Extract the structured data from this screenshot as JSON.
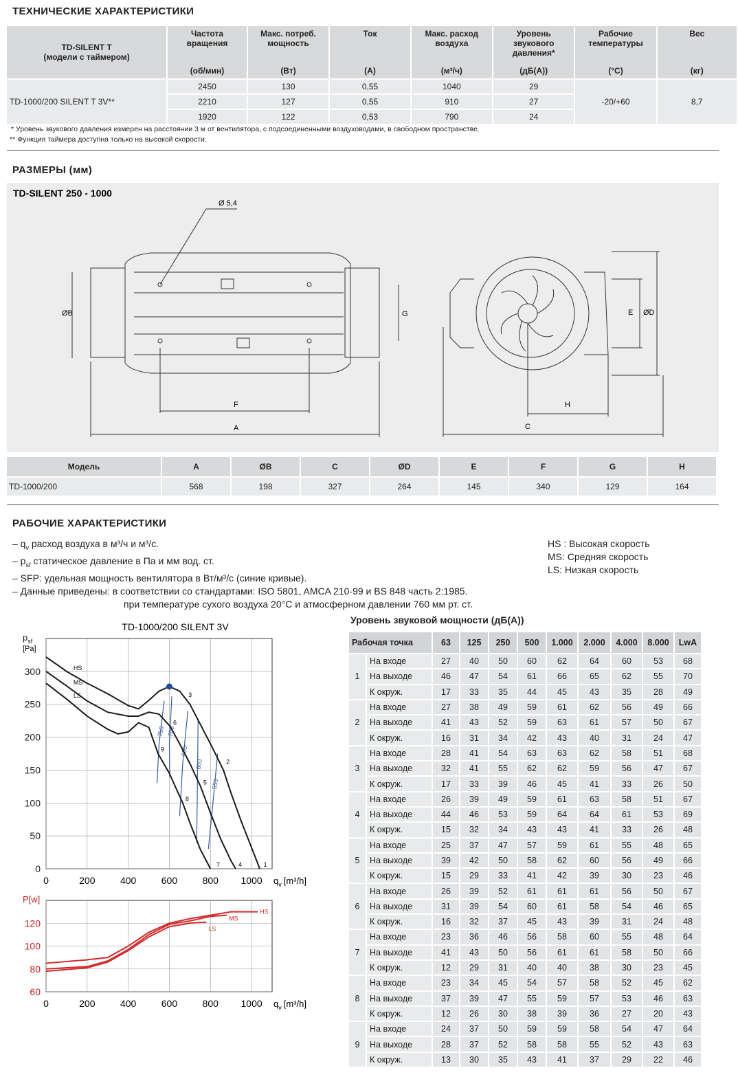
{
  "specs": {
    "title": "ТЕХНИЧЕСКИЕ ХАРАКТЕРИСТИКИ",
    "model_header": [
      "TD-SILENT T",
      "(модели с таймером)"
    ],
    "columns": [
      {
        "name": "Частота вращения",
        "unit": "(об/мин)"
      },
      {
        "name": "Макс. потреб. мощность",
        "unit": "(Вт)"
      },
      {
        "name": "Ток",
        "unit": "(A)"
      },
      {
        "name": "Макс. расход воздуха",
        "unit": "(м³/ч)"
      },
      {
        "name": "Уровень звукового давления*",
        "unit": "(дБ(A))"
      },
      {
        "name": "Рабочие температуры",
        "unit": "(°C)"
      },
      {
        "name": "Вес",
        "unit": "(кг)"
      }
    ],
    "model": "TD-1000/200 SILENT T 3V**",
    "rows": [
      [
        "2450",
        "130",
        "0,55",
        "1040",
        "29"
      ],
      [
        "2210",
        "127",
        "0,55",
        "910",
        "27"
      ],
      [
        "1920",
        "122",
        "0,53",
        "790",
        "24"
      ]
    ],
    "temperature": "-20/+60",
    "weight": "8,7",
    "notes": [
      "* Уровень звукового давления измерен на расстоянии 3 м от вентилятора, с подсоединенными воздуховодами, в свободном пространстве.",
      "** Функция таймера доступна только на высокой скорости."
    ]
  },
  "dimensions": {
    "title": "РАЗМЕРЫ (мм)",
    "drawing_title": "TD-SILENT 250 - 1000",
    "drawing_labels": {
      "hole": "Ø 5,4",
      "B": "ØB",
      "G": "G",
      "F": "F",
      "A": "A",
      "E": "E",
      "D": "ØD",
      "H": "H",
      "C": "C"
    },
    "table": {
      "header": [
        "Модель",
        "A",
        "ØB",
        "C",
        "ØD",
        "E",
        "F",
        "G",
        "H"
      ],
      "row": [
        "TD-1000/200",
        "568",
        "198",
        "327",
        "264",
        "145",
        "340",
        "129",
        "164"
      ]
    }
  },
  "performance": {
    "title": "РАБОЧИЕ ХАРАКТЕРИСТИКИ",
    "notes": [
      {
        "pre": "– q",
        "sub": "v",
        "post": " расход воздуха в м³/ч и м³/с."
      },
      {
        "pre": "– p",
        "sub": "sf",
        "post": "  статическое давление в Па и мм вод. ст."
      },
      {
        "pre": "– SFP: удельная мощность вентилятора в Вт/м³/с (синие кривые)."
      },
      {
        "pre": "– Данные приведены: в соответствии со стандартами: ISO 5801, AMCA 210-99 и BS 848 часть 2:1985."
      },
      {
        "pre": "при температуре сухого воздуха 20°C и атмосферном давлении 760 мм рт. ст."
      }
    ],
    "legend": [
      "HS : Высокая скорость",
      "MS: Средняя скорость",
      "LS: Низкая скорость"
    ]
  },
  "chart_data": [
    {
      "type": "line",
      "title": "TD-1000/200 SILENT 3V",
      "y_label": "p",
      "y_label_sub": "sf",
      "y_unit": "[Pa]",
      "x_label": "q",
      "x_label_sub": "v",
      "x_unit": "[m³/h]",
      "xlim": [
        0,
        1100
      ],
      "ylim": [
        0,
        350
      ],
      "xticks": [
        0,
        200,
        400,
        600,
        800,
        1000
      ],
      "yticks": [
        0,
        50,
        100,
        150,
        200,
        250,
        300
      ],
      "grid": true,
      "series_label_position": "start",
      "series": [
        {
          "name": "HS",
          "color": "#1a1a1a",
          "x": [
            0,
            100,
            200,
            300,
            400,
            450,
            500,
            550,
            600,
            650,
            700,
            750,
            800,
            863,
            900,
            950,
            1000,
            1040
          ],
          "values": [
            322,
            300,
            282,
            266,
            248,
            243,
            256,
            270,
            277,
            270,
            250,
            220,
            190,
            150,
            115,
            72,
            32,
            0
          ]
        },
        {
          "name": "MS",
          "color": "#1a1a1a",
          "x": [
            0,
            100,
            200,
            300,
            400,
            450,
            500,
            550,
            605,
            650,
            700,
            752,
            800,
            850,
            900,
            923
          ],
          "values": [
            300,
            278,
            255,
            238,
            232,
            232,
            238,
            235,
            216,
            190,
            160,
            125,
            85,
            45,
            12,
            0
          ]
        },
        {
          "name": "LS",
          "color": "#1a1a1a",
          "x": [
            0,
            100,
            200,
            300,
            350,
            400,
            450,
            500,
            545,
            600,
            665,
            700,
            750,
            800
          ],
          "values": [
            282,
            258,
            232,
            212,
            205,
            208,
            222,
            215,
            175,
            145,
            100,
            70,
            30,
            0
          ]
        }
      ],
      "sfp_series": [
        {
          "name": "750",
          "color": "#3a5a9a",
          "x": [
            575,
            550,
            540
          ],
          "values": [
            255,
            190,
            130
          ]
        },
        {
          "name": "700",
          "color": "#3a5a9a",
          "x": [
            612,
            600,
            602
          ],
          "values": [
            262,
            190,
            140
          ]
        },
        {
          "name": "650",
          "color": "#3a5a9a",
          "x": [
            690,
            665,
            650
          ],
          "values": [
            240,
            160,
            80
          ]
        },
        {
          "name": "600",
          "color": "#3a5a9a",
          "x": [
            740,
            737,
            733
          ],
          "values": [
            228,
            140,
            40
          ]
        },
        {
          "name": "550",
          "color": "#3a5a9a",
          "x": [
            835,
            815,
            790
          ],
          "values": [
            175,
            110,
            30
          ]
        }
      ],
      "point": {
        "x": 600,
        "y": 277,
        "color": "#1f4e9e"
      },
      "annotations": [
        {
          "text": "1",
          "x": 1045,
          "y": 0
        },
        {
          "text": "2",
          "x": 863,
          "y": 156
        },
        {
          "text": "3",
          "x": 679,
          "y": 258
        },
        {
          "text": "4",
          "x": 923,
          "y": 0
        },
        {
          "text": "5",
          "x": 752,
          "y": 125
        },
        {
          "text": "6",
          "x": 605,
          "y": 216
        },
        {
          "text": "7",
          "x": 816,
          "y": 0
        },
        {
          "text": "8",
          "x": 665,
          "y": 100
        },
        {
          "text": "9",
          "x": 545,
          "y": 175
        }
      ]
    },
    {
      "type": "line",
      "y_label": "P[w]",
      "y_label_color": "#cc1f1f",
      "x_label": "q",
      "x_label_sub": "v",
      "x_unit": "[m³/h]",
      "xlim": [
        0,
        1100
      ],
      "ylim": [
        60,
        140
      ],
      "xticks": [
        0,
        200,
        400,
        600,
        800,
        1000
      ],
      "yticks": [
        60,
        80,
        100,
        120
      ],
      "grid": true,
      "series_label_position": "end",
      "series": [
        {
          "name": "HS",
          "color": "#d42a2a",
          "x": [
            0,
            200,
            300,
            400,
            500,
            600,
            700,
            800,
            900,
            1030
          ],
          "values": [
            85,
            88,
            90,
            100,
            112,
            120,
            124,
            127,
            130,
            130
          ]
        },
        {
          "name": "MS",
          "color": "#d42a2a",
          "x": [
            0,
            200,
            300,
            400,
            500,
            600,
            700,
            800,
            880
          ],
          "values": [
            80,
            82,
            87,
            97,
            110,
            119,
            122,
            126,
            127
          ]
        },
        {
          "name": "LS",
          "color": "#d42a2a",
          "x": [
            0,
            200,
            300,
            400,
            500,
            600,
            700,
            780
          ],
          "values": [
            78,
            81,
            86,
            96,
            108,
            117,
            120,
            121
          ]
        }
      ]
    }
  ],
  "sound_table": {
    "title": "Уровень звуковой мощности (дБ(A))",
    "header": [
      "Рабочая точка",
      "63",
      "125",
      "250",
      "500",
      "1.000",
      "2.000",
      "4.000",
      "8.000",
      "LwA"
    ],
    "groups": [
      {
        "point": "1",
        "rows": [
          {
            "label": "На входе",
            "values": [
              "27",
              "40",
              "50",
              "60",
              "62",
              "64",
              "60",
              "53",
              "68"
            ]
          },
          {
            "label": "На выходе",
            "values": [
              "46",
              "47",
              "54",
              "61",
              "66",
              "65",
              "62",
              "55",
              "70"
            ]
          },
          {
            "label": "К окруж.",
            "values": [
              "17",
              "33",
              "35",
              "44",
              "45",
              "43",
              "35",
              "28",
              "49"
            ]
          }
        ]
      },
      {
        "point": "2",
        "rows": [
          {
            "label": "На входе",
            "values": [
              "27",
              "38",
              "49",
              "59",
              "61",
              "62",
              "56",
              "49",
              "66"
            ]
          },
          {
            "label": "На выходе",
            "values": [
              "41",
              "43",
              "52",
              "59",
              "63",
              "61",
              "57",
              "50",
              "67"
            ]
          },
          {
            "label": "К окруж.",
            "values": [
              "16",
              "31",
              "34",
              "42",
              "43",
              "40",
              "31",
              "24",
              "47"
            ]
          }
        ]
      },
      {
        "point": "3",
        "rows": [
          {
            "label": "На входе",
            "values": [
              "28",
              "41",
              "54",
              "63",
              "63",
              "62",
              "58",
              "51",
              "68"
            ]
          },
          {
            "label": "На выходе",
            "values": [
              "32",
              "41",
              "55",
              "62",
              "62",
              "59",
              "56",
              "47",
              "67"
            ]
          },
          {
            "label": "К окруж.",
            "values": [
              "17",
              "33",
              "39",
              "46",
              "45",
              "41",
              "33",
              "26",
              "50"
            ]
          }
        ]
      },
      {
        "point": "4",
        "rows": [
          {
            "label": "На входе",
            "values": [
              "26",
              "39",
              "49",
              "59",
              "61",
              "63",
              "58",
              "51",
              "67"
            ]
          },
          {
            "label": "На выходе",
            "values": [
              "44",
              "46",
              "53",
              "59",
              "64",
              "64",
              "61",
              "53",
              "69"
            ]
          },
          {
            "label": "К окруж.",
            "values": [
              "15",
              "32",
              "34",
              "43",
              "43",
              "41",
              "33",
              "26",
              "48"
            ]
          }
        ]
      },
      {
        "point": "5",
        "rows": [
          {
            "label": "На входе",
            "values": [
              "25",
              "37",
              "47",
              "57",
              "59",
              "61",
              "55",
              "48",
              "65"
            ]
          },
          {
            "label": "На выходе",
            "values": [
              "39",
              "42",
              "50",
              "58",
              "62",
              "60",
              "56",
              "49",
              "66"
            ]
          },
          {
            "label": "К окруж.",
            "values": [
              "15",
              "29",
              "33",
              "41",
              "42",
              "39",
              "30",
              "23",
              "46"
            ]
          }
        ]
      },
      {
        "point": "6",
        "rows": [
          {
            "label": "На входе",
            "values": [
              "26",
              "39",
              "52",
              "61",
              "61",
              "61",
              "56",
              "50",
              "67"
            ]
          },
          {
            "label": "На выходе",
            "values": [
              "31",
              "39",
              "54",
              "60",
              "61",
              "58",
              "54",
              "46",
              "65"
            ]
          },
          {
            "label": "К окруж.",
            "values": [
              "16",
              "32",
              "37",
              "45",
              "43",
              "39",
              "31",
              "24",
              "48"
            ]
          }
        ]
      },
      {
        "point": "7",
        "rows": [
          {
            "label": "На входе",
            "values": [
              "23",
              "36",
              "46",
              "56",
              "58",
              "60",
              "55",
              "48",
              "64"
            ]
          },
          {
            "label": "На выходе",
            "values": [
              "41",
              "43",
              "50",
              "56",
              "61",
              "61",
              "58",
              "50",
              "66"
            ]
          },
          {
            "label": "К окруж.",
            "values": [
              "12",
              "29",
              "31",
              "40",
              "40",
              "38",
              "30",
              "23",
              "45"
            ]
          }
        ]
      },
      {
        "point": "8",
        "rows": [
          {
            "label": "На входе",
            "values": [
              "23",
              "34",
              "45",
              "54",
              "57",
              "58",
              "52",
              "45",
              "62"
            ]
          },
          {
            "label": "На выходе",
            "values": [
              "37",
              "39",
              "47",
              "55",
              "59",
              "57",
              "53",
              "46",
              "63"
            ]
          },
          {
            "label": "К окруж.",
            "values": [
              "12",
              "26",
              "30",
              "38",
              "39",
              "36",
              "27",
              "20",
              "43"
            ]
          }
        ]
      },
      {
        "point": "9",
        "rows": [
          {
            "label": "На входе",
            "values": [
              "24",
              "37",
              "50",
              "59",
              "59",
              "58",
              "54",
              "47",
              "64"
            ]
          },
          {
            "label": "На выходе",
            "values": [
              "28",
              "37",
              "52",
              "58",
              "58",
              "55",
              "52",
              "43",
              "63"
            ]
          },
          {
            "label": "К окруж.",
            "values": [
              "13",
              "30",
              "35",
              "43",
              "41",
              "37",
              "29",
              "22",
              "46"
            ]
          }
        ]
      }
    ]
  }
}
